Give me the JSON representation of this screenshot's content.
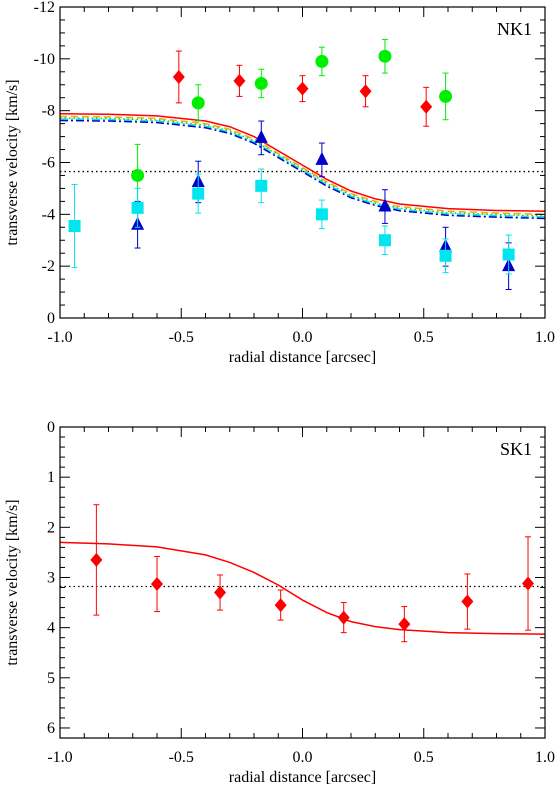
{
  "chart_data": [
    {
      "type": "scatter",
      "label": "NK1",
      "xlabel": "radial distance [arcsec]",
      "ylabel": "transverse velocity [km/s]",
      "xlim": [
        -1.0,
        1.0
      ],
      "ylim": [
        0,
        -12
      ],
      "y_axis_inverted": true,
      "x_ticks": [
        -1.0,
        -0.5,
        0.0,
        0.5,
        1.0
      ],
      "x_tick_labels": [
        "-1.0",
        "-0.5",
        "0.0",
        "0.5",
        "1.0"
      ],
      "y_ticks": [
        -12,
        -10,
        -8,
        -6,
        -4,
        -2,
        0
      ],
      "y_tick_labels": [
        "-12",
        "-10",
        "-8",
        "-6",
        "-4",
        "-2",
        "0"
      ],
      "grid": false,
      "legend": "none",
      "series": [
        {
          "marker": "diamond",
          "color": "#ff0000",
          "points": [
            {
              "x": -0.51,
              "y": -9.3,
              "err": 1.0
            },
            {
              "x": -0.26,
              "y": -9.15,
              "err": 0.6
            },
            {
              "x": 0.0,
              "y": -8.85,
              "err": 0.5
            },
            {
              "x": 0.26,
              "y": -8.75,
              "err": 0.6
            },
            {
              "x": 0.51,
              "y": -8.15,
              "err": 0.75
            }
          ]
        },
        {
          "marker": "circle",
          "color": "#00ee00",
          "points": [
            {
              "x": -0.68,
              "y": -5.5,
              "err": 1.2
            },
            {
              "x": -0.43,
              "y": -8.3,
              "err": 0.7
            },
            {
              "x": -0.17,
              "y": -9.05,
              "err": 0.55
            },
            {
              "x": 0.08,
              "y": -9.9,
              "err": 0.55
            },
            {
              "x": 0.34,
              "y": -10.1,
              "err": 0.65
            },
            {
              "x": 0.59,
              "y": -8.55,
              "err": 0.9
            }
          ]
        },
        {
          "marker": "triangle",
          "color": "#0000cc",
          "points": [
            {
              "x": -0.68,
              "y": -3.6,
              "err": 0.9
            },
            {
              "x": -0.43,
              "y": -5.25,
              "err": 0.8
            },
            {
              "x": -0.17,
              "y": -6.95,
              "err": 0.65
            },
            {
              "x": 0.08,
              "y": -6.1,
              "err": 0.65
            },
            {
              "x": 0.34,
              "y": -4.3,
              "err": 0.65
            },
            {
              "x": 0.59,
              "y": -2.75,
              "err": 0.75
            },
            {
              "x": 0.85,
              "y": -2.0,
              "err": 0.9
            }
          ]
        },
        {
          "marker": "square",
          "color": "#00e5ee",
          "points": [
            {
              "x": -0.94,
              "y": -3.55,
              "err": 1.6
            },
            {
              "x": -0.68,
              "y": -4.25,
              "err": 0.75
            },
            {
              "x": -0.43,
              "y": -4.8,
              "err": 0.75
            },
            {
              "x": -0.17,
              "y": -5.1,
              "err": 0.65
            },
            {
              "x": 0.08,
              "y": -4.0,
              "err": 0.55
            },
            {
              "x": 0.34,
              "y": -3.0,
              "err": 0.55
            },
            {
              "x": 0.59,
              "y": -2.4,
              "err": 0.65
            },
            {
              "x": 0.85,
              "y": -2.45,
              "err": 0.75
            }
          ]
        }
      ],
      "curves": [
        {
          "color": "#ff0000",
          "style": "solid",
          "x": [
            -1.0,
            -0.8,
            -0.6,
            -0.4,
            -0.3,
            -0.2,
            -0.1,
            0.0,
            0.1,
            0.2,
            0.3,
            0.4,
            0.6,
            0.8,
            1.0
          ],
          "y": [
            -7.88,
            -7.86,
            -7.8,
            -7.6,
            -7.38,
            -7.0,
            -6.45,
            -5.9,
            -5.35,
            -4.9,
            -4.6,
            -4.4,
            -4.22,
            -4.15,
            -4.12
          ]
        },
        {
          "color": "#ffa500",
          "style": "dashed",
          "x": [
            -1.0,
            -0.8,
            -0.6,
            -0.4,
            -0.3,
            -0.2,
            -0.1,
            0.0,
            0.1,
            0.2,
            0.3,
            0.4,
            0.6,
            0.8,
            1.0
          ],
          "y": [
            -7.78,
            -7.76,
            -7.7,
            -7.5,
            -7.28,
            -6.9,
            -6.35,
            -5.8,
            -5.25,
            -4.8,
            -4.5,
            -4.3,
            -4.12,
            -4.05,
            -4.0
          ]
        },
        {
          "color": "#00dd00",
          "style": "dotted",
          "x": [
            -1.0,
            -0.8,
            -0.6,
            -0.4,
            -0.3,
            -0.2,
            -0.1,
            0.0,
            0.1,
            0.2,
            0.3,
            0.4,
            0.6,
            0.8,
            1.0
          ],
          "y": [
            -7.72,
            -7.7,
            -7.64,
            -7.44,
            -7.22,
            -6.84,
            -6.29,
            -5.74,
            -5.19,
            -4.74,
            -4.44,
            -4.24,
            -4.06,
            -3.99,
            -3.94
          ]
        },
        {
          "color": "#00e5ee",
          "style": "dashdot",
          "x": [
            -1.0,
            -0.8,
            -0.6,
            -0.4,
            -0.3,
            -0.2,
            -0.1,
            0.0,
            0.1,
            0.2,
            0.3,
            0.4,
            0.6,
            0.8,
            1.0
          ],
          "y": [
            -7.68,
            -7.66,
            -7.6,
            -7.4,
            -7.18,
            -6.8,
            -6.25,
            -5.7,
            -5.15,
            -4.7,
            -4.4,
            -4.2,
            -4.02,
            -3.95,
            -3.9
          ]
        },
        {
          "color": "#0000cc",
          "style": "dashdot",
          "x": [
            -1.0,
            -0.8,
            -0.6,
            -0.4,
            -0.3,
            -0.2,
            -0.1,
            0.0,
            0.1,
            0.2,
            0.3,
            0.4,
            0.6,
            0.8,
            1.0
          ],
          "y": [
            -7.62,
            -7.6,
            -7.54,
            -7.34,
            -7.12,
            -6.74,
            -6.19,
            -5.64,
            -5.09,
            -4.64,
            -4.34,
            -4.14,
            -3.96,
            -3.89,
            -3.84
          ]
        }
      ],
      "reference_line": {
        "y": -5.65,
        "color": "#000000",
        "style": "dotted"
      }
    },
    {
      "type": "scatter",
      "label": "SK1",
      "xlabel": "radial distance [arcsec]",
      "ylabel": "transverse velocity [km/s]",
      "xlim": [
        -1.0,
        1.0
      ],
      "ylim": [
        6.2,
        0
      ],
      "y_axis_inverted": true,
      "x_ticks": [
        -1.0,
        -0.5,
        0.0,
        0.5,
        1.0
      ],
      "x_tick_labels": [
        "-1.0",
        "-0.5",
        "0.0",
        "0.5",
        "1.0"
      ],
      "y_ticks": [
        0,
        1,
        2,
        3,
        4,
        5,
        6
      ],
      "y_tick_labels": [
        "0",
        "1",
        "2",
        "3",
        "4",
        "5",
        "6"
      ],
      "grid": false,
      "legend": "none",
      "series": [
        {
          "marker": "diamond",
          "color": "#ff0000",
          "points": [
            {
              "x": -0.85,
              "y": 2.65,
              "err": 1.1
            },
            {
              "x": -0.6,
              "y": 3.13,
              "err": 0.55
            },
            {
              "x": -0.34,
              "y": 3.3,
              "err": 0.35
            },
            {
              "x": -0.09,
              "y": 3.55,
              "err": 0.3
            },
            {
              "x": 0.17,
              "y": 3.8,
              "err": 0.3
            },
            {
              "x": 0.42,
              "y": 3.93,
              "err": 0.35
            },
            {
              "x": 0.68,
              "y": 3.48,
              "err": 0.55
            },
            {
              "x": 0.93,
              "y": 3.12,
              "err": 0.93
            }
          ]
        }
      ],
      "curves": [
        {
          "color": "#ff0000",
          "style": "solid",
          "x": [
            -1.0,
            -0.8,
            -0.6,
            -0.4,
            -0.3,
            -0.2,
            -0.1,
            0.0,
            0.1,
            0.2,
            0.3,
            0.4,
            0.6,
            0.8,
            1.0
          ],
          "y": [
            2.3,
            2.33,
            2.39,
            2.55,
            2.7,
            2.9,
            3.15,
            3.45,
            3.7,
            3.88,
            3.98,
            4.04,
            4.1,
            4.12,
            4.13
          ]
        }
      ],
      "reference_line": {
        "y": 3.18,
        "color": "#000000",
        "style": "dotted"
      }
    }
  ]
}
